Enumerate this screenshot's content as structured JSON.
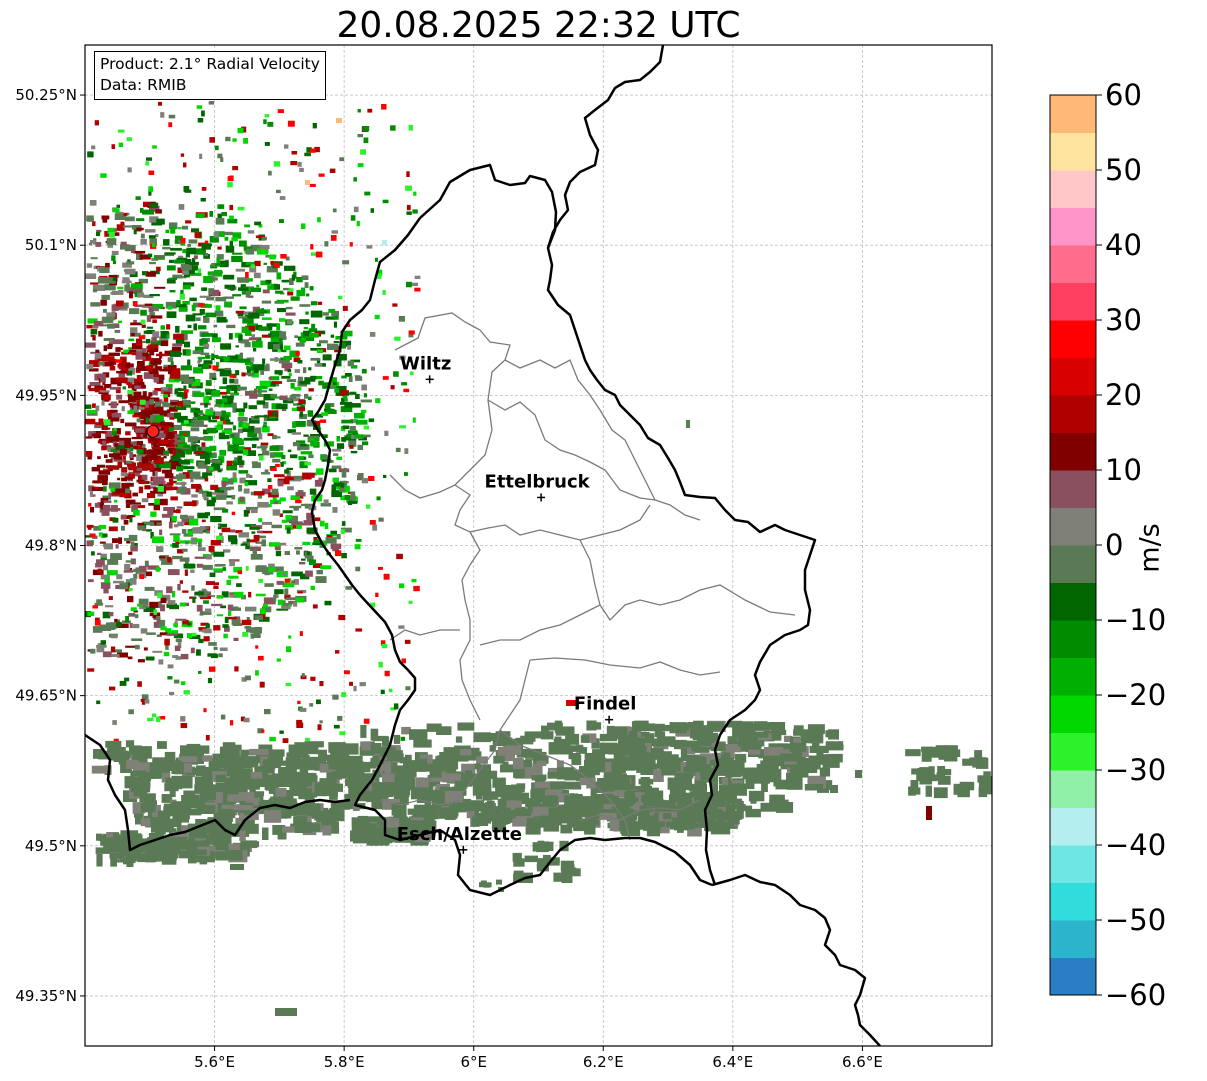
{
  "title": "20.08.2025 22:32 UTC",
  "info_box": {
    "product": "Product: 2.1° Radial Velocity",
    "data_source": "Data: RMIB"
  },
  "map": {
    "lon_range": [
      5.4,
      6.8
    ],
    "lat_range": [
      49.3,
      50.3
    ],
    "x_ticks": [
      {
        "value": 5.6,
        "label": "5.6°E"
      },
      {
        "value": 5.8,
        "label": "5.8°E"
      },
      {
        "value": 6.0,
        "label": "6°E"
      },
      {
        "value": 6.2,
        "label": "6.2°E"
      },
      {
        "value": 6.4,
        "label": "6.4°E"
      },
      {
        "value": 6.6,
        "label": "6.6°E"
      }
    ],
    "y_ticks": [
      {
        "value": 50.25,
        "label": "50.25°N"
      },
      {
        "value": 50.1,
        "label": "50.1°N"
      },
      {
        "value": 49.95,
        "label": "49.95°N"
      },
      {
        "value": 49.8,
        "label": "49.8°N"
      },
      {
        "value": 49.65,
        "label": "49.65°N"
      },
      {
        "value": 49.5,
        "label": "49.5°N"
      },
      {
        "value": 49.35,
        "label": "49.35°N"
      }
    ],
    "gridlines": true,
    "radar_site": {
      "lon": 5.505,
      "lat": 49.914,
      "color": "#ff2020"
    },
    "cities": [
      {
        "name": "Wiltz",
        "lon": 5.932,
        "lat": 49.966
      },
      {
        "name": "Ettelbruck",
        "lon": 6.104,
        "lat": 49.848
      },
      {
        "name": "Findel",
        "lon": 6.209,
        "lat": 49.626
      },
      {
        "name": "Esch/Alzette",
        "lon": 5.984,
        "lat": 49.496
      }
    ]
  },
  "colorbar": {
    "min": -60,
    "max": 60,
    "ticks": [
      {
        "value": 60,
        "label": "60"
      },
      {
        "value": 50,
        "label": "50"
      },
      {
        "value": 40,
        "label": "40"
      },
      {
        "value": 30,
        "label": "30"
      },
      {
        "value": 20,
        "label": "20"
      },
      {
        "value": 10,
        "label": "10"
      },
      {
        "value": 0,
        "label": "0"
      },
      {
        "value": -10,
        "label": "−10"
      },
      {
        "value": -20,
        "label": "−20"
      },
      {
        "value": -30,
        "label": "−30"
      },
      {
        "value": -40,
        "label": "−40"
      },
      {
        "value": -50,
        "label": "−50"
      },
      {
        "value": -60,
        "label": "−60"
      }
    ],
    "unit": "m/s",
    "colors": {
      "neg_60": "#2a7fc4",
      "neg_55": "#2cb4cc",
      "neg_50": "#30dcdc",
      "neg_45": "#6ee6e4",
      "neg_40": "#b4eeef",
      "neg_35": "#8ff0a8",
      "neg_30": "#2cf22c",
      "neg_25": "#00d800",
      "neg_20": "#00b000",
      "neg_15": "#008c00",
      "neg_10": "#006600",
      "neg_5": "#5a7a55",
      "zero": "#7f8077",
      "pos_5": "#8a5060",
      "pos_10": "#800000",
      "pos_15": "#b00000",
      "pos_20": "#d80000",
      "pos_25": "#ff0000",
      "pos_30": "#ff4060",
      "pos_35": "#ff6c8c",
      "pos_40": "#ff94c8",
      "pos_45": "#ffc8c8",
      "pos_50": "#ffe4a0",
      "pos_55": "#ffb878",
      "pos_60": "#ff9a50"
    }
  }
}
